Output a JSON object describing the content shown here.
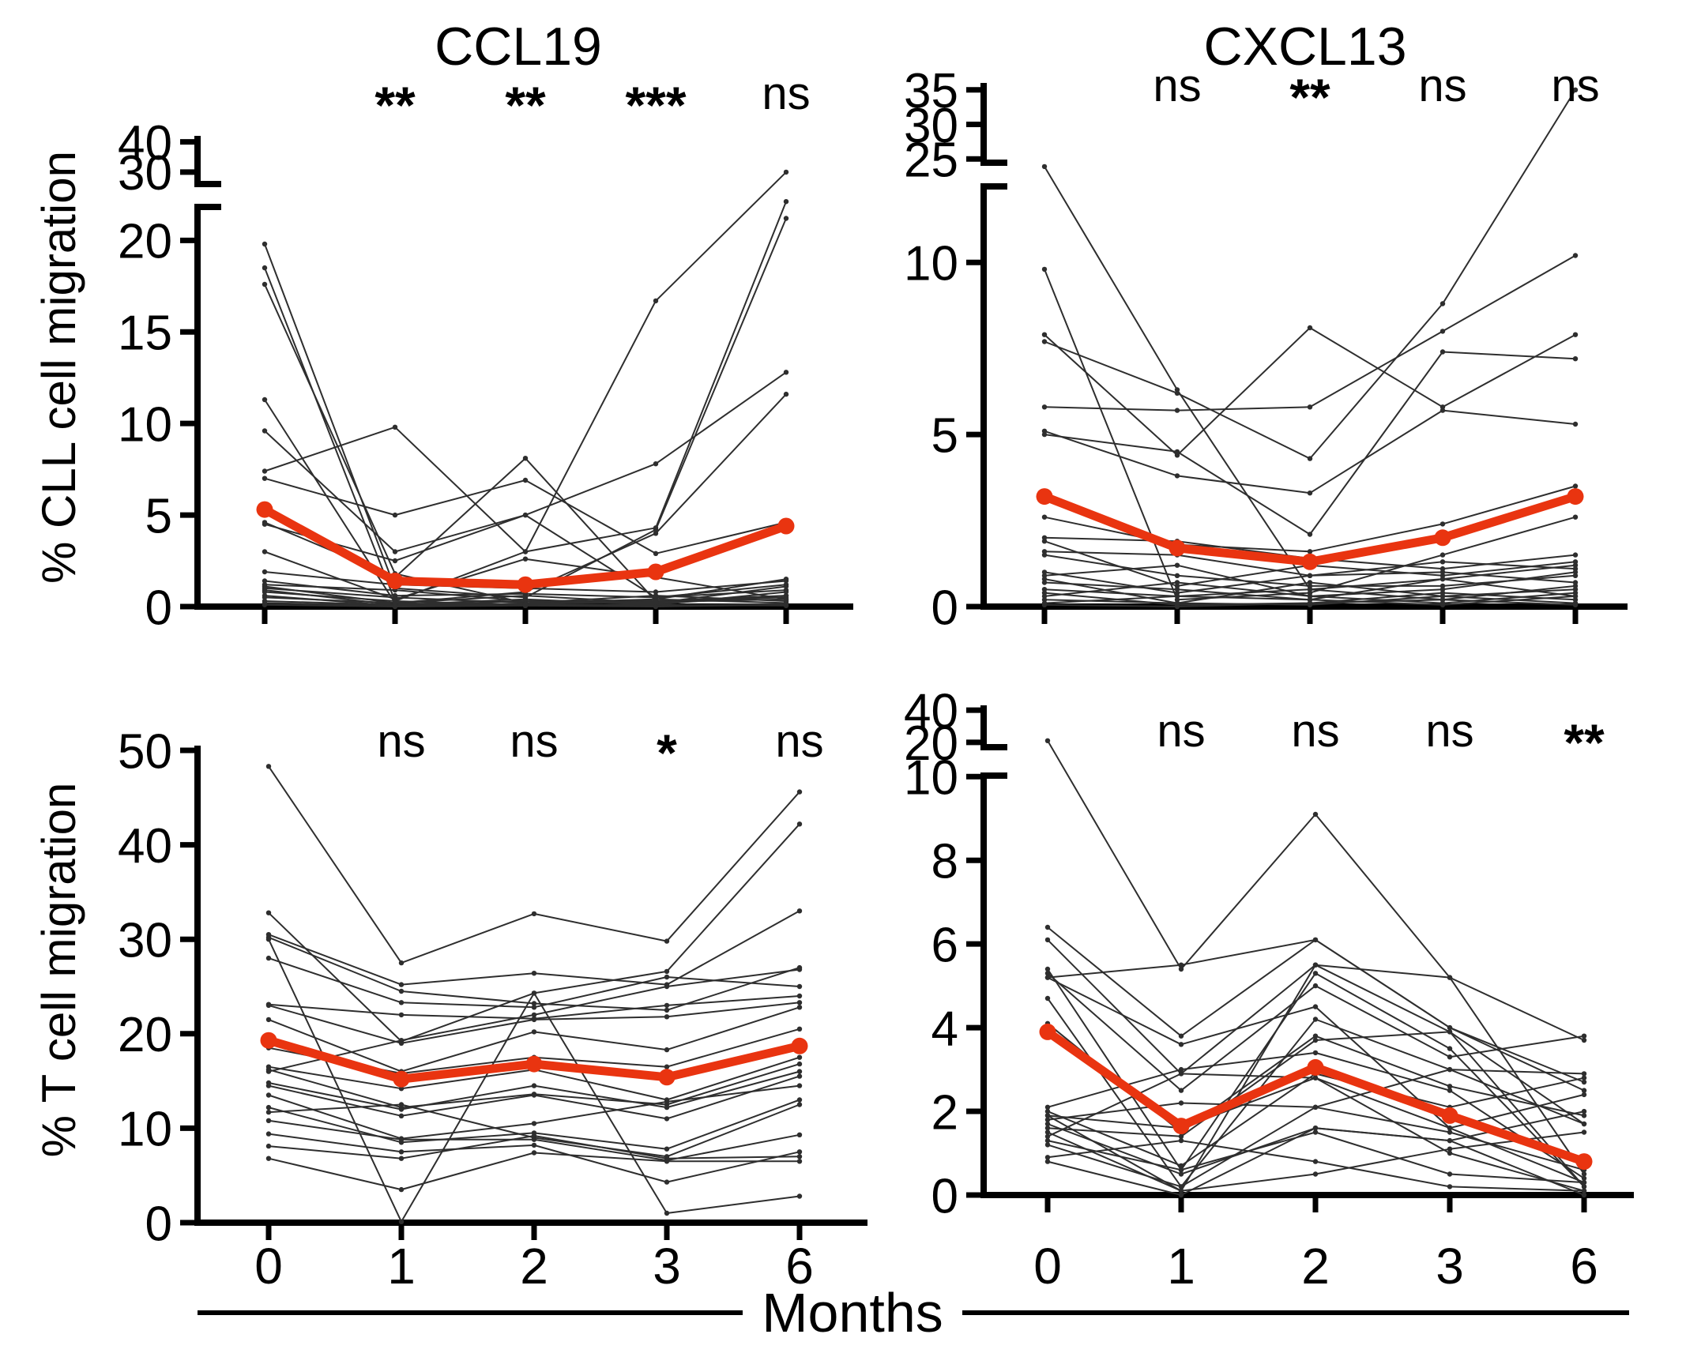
{
  "figure": {
    "xlabel": "Months",
    "col_titles": [
      "CCL19",
      "CXCL13"
    ],
    "row_labels": [
      "% CLL cell migration",
      "% T cell migration"
    ],
    "colors": {
      "mean_line": "#e93410",
      "individual_line": "#2e2e2e",
      "axis": "#000000",
      "background": "#ffffff"
    }
  },
  "chart_data": [
    {
      "type": "line",
      "id": "cll_ccl19",
      "title": "CCL19",
      "ylabel": "% CLL cell migration",
      "x_categories": [
        0,
        1,
        2,
        3,
        6
      ],
      "sig": [
        "**",
        "**",
        "***",
        "ns"
      ],
      "y_main": {
        "max_value": 22,
        "ticks": [
          0,
          5,
          10,
          15,
          20
        ]
      },
      "y_break": {
        "range": [
          25,
          42
        ],
        "ticks": [
          30,
          40
        ]
      },
      "mean": [
        5.3,
        1.4,
        1.2,
        1.9,
        4.4
      ],
      "individuals": [
        [
          19.8,
          1.0,
          0.5,
          4.2,
          21.2
        ],
        [
          18.5,
          0.3,
          3.0,
          16.7,
          30.0
        ],
        [
          17.6,
          1.8,
          0.2,
          0.4,
          1.5
        ],
        [
          11.3,
          0.2,
          0.8,
          4.0,
          11.6
        ],
        [
          9.6,
          3.0,
          5.0,
          0.5,
          1.2
        ],
        [
          7.4,
          9.8,
          3.0,
          4.3,
          22.4
        ],
        [
          7.0,
          5.0,
          6.9,
          2.9,
          4.6
        ],
        [
          4.6,
          1.6,
          8.1,
          0.3,
          0.6
        ],
        [
          4.5,
          2.5,
          5.0,
          7.8,
          12.8
        ],
        [
          3.0,
          0.4,
          2.6,
          1.6,
          0.4
        ],
        [
          1.9,
          1.2,
          1.0,
          0.8,
          1.4
        ],
        [
          1.4,
          0.6,
          0.7,
          0.5,
          0.9
        ],
        [
          1.2,
          0.9,
          0.3,
          0.3,
          0.5
        ],
        [
          1.1,
          0.2,
          0.6,
          0.2,
          1.1
        ],
        [
          1.0,
          0.5,
          0.2,
          0.6,
          0.3
        ],
        [
          0.9,
          0.1,
          0.4,
          0.1,
          0.8
        ],
        [
          0.8,
          0.3,
          0.1,
          0.4,
          0.2
        ],
        [
          0.6,
          0.05,
          0.3,
          0.15,
          0.6
        ],
        [
          0.5,
          0.2,
          0.05,
          0.05,
          0.15
        ],
        [
          0.3,
          0.1,
          0.15,
          0.25,
          0.4
        ],
        [
          0.2,
          0.05,
          0.1,
          0.1,
          0.05
        ],
        [
          0.1,
          0.0,
          0.05,
          0.0,
          0.1
        ]
      ]
    },
    {
      "type": "line",
      "id": "cll_cxcl13",
      "title": "CXCL13",
      "ylabel": "% CLL cell migration",
      "x_categories": [
        0,
        1,
        2,
        3,
        6
      ],
      "sig": [
        "ns",
        "**",
        "ns",
        "ns"
      ],
      "y_main": {
        "max_value": 12.3,
        "ticks": [
          0,
          5,
          10
        ]
      },
      "y_break": {
        "range": [
          24,
          36
        ],
        "ticks": [
          25,
          30,
          35
        ]
      },
      "mean": [
        3.2,
        1.7,
        1.3,
        2.0,
        3.2
      ],
      "individuals": [
        [
          23.5,
          6.3,
          0.5,
          0.8,
          1.2
        ],
        [
          9.8,
          0.2,
          0.4,
          1.5,
          2.6
        ],
        [
          7.9,
          4.4,
          8.1,
          5.8,
          7.9
        ],
        [
          7.7,
          6.2,
          4.3,
          8.8,
          35.0
        ],
        [
          5.8,
          5.7,
          5.8,
          8.0,
          10.2
        ],
        [
          5.1,
          3.8,
          3.3,
          5.7,
          5.3
        ],
        [
          5.0,
          4.5,
          2.1,
          7.4,
          7.2
        ],
        [
          2.6,
          1.8,
          1.6,
          2.4,
          3.5
        ],
        [
          2.0,
          1.9,
          1.4,
          1.1,
          1.5
        ],
        [
          1.9,
          0.6,
          1.2,
          0.9,
          1.3
        ],
        [
          1.6,
          1.5,
          0.9,
          1.3,
          1.1
        ],
        [
          1.5,
          0.9,
          0.6,
          0.6,
          0.9
        ],
        [
          1.0,
          0.4,
          0.9,
          1.0,
          0.7
        ],
        [
          0.9,
          1.2,
          0.3,
          0.5,
          1.0
        ],
        [
          0.8,
          0.1,
          0.7,
          0.3,
          0.5
        ],
        [
          0.7,
          0.5,
          0.2,
          0.8,
          0.3
        ],
        [
          0.5,
          0.3,
          0.5,
          0.2,
          0.6
        ],
        [
          0.4,
          0.05,
          0.1,
          0.4,
          0.2
        ],
        [
          0.3,
          0.7,
          0.3,
          0.1,
          0.4
        ],
        [
          0.2,
          0.1,
          0.05,
          0.3,
          0.1
        ],
        [
          0.1,
          0.3,
          0.2,
          0.05,
          0.3
        ],
        [
          0.05,
          0.0,
          0.1,
          0.2,
          0.05
        ]
      ]
    },
    {
      "type": "line",
      "id": "t_ccl19",
      "title": "",
      "ylabel": "% T cell migration",
      "x_categories": [
        0,
        1,
        2,
        3,
        6
      ],
      "sig": [
        "ns",
        "ns",
        "*",
        "ns"
      ],
      "y_main": {
        "max_value": 50.5,
        "ticks": [
          0,
          10,
          20,
          30,
          40,
          50
        ]
      },
      "y_break": null,
      "mean": [
        19.3,
        15.2,
        16.8,
        15.4,
        18.7
      ],
      "individuals": [
        [
          48.3,
          27.5,
          32.7,
          29.8,
          45.6
        ],
        [
          32.8,
          19.2,
          24.3,
          26.6,
          42.2
        ],
        [
          30.5,
          25.2,
          26.4,
          25.2,
          33.0
        ],
        [
          30.2,
          24.5,
          23.2,
          22.5,
          27.0
        ],
        [
          28.0,
          23.3,
          22.8,
          26.0,
          25.0
        ],
        [
          23.1,
          22.0,
          21.6,
          23.0,
          24.0
        ],
        [
          23.0,
          19.0,
          21.5,
          21.8,
          23.3
        ],
        [
          21.5,
          16.0,
          20.2,
          18.3,
          22.8
        ],
        [
          18.5,
          15.8,
          17.5,
          16.5,
          20.5
        ],
        [
          16.5,
          14.2,
          16.2,
          13.0,
          17.5
        ],
        [
          16.2,
          12.2,
          13.6,
          12.5,
          16.8
        ],
        [
          14.8,
          12.0,
          14.5,
          12.2,
          16.0
        ],
        [
          14.5,
          11.3,
          13.5,
          11.0,
          15.5
        ],
        [
          13.5,
          8.9,
          10.5,
          12.8,
          14.5
        ],
        [
          12.2,
          8.5,
          9.5,
          7.8,
          13.0
        ],
        [
          11.7,
          12.5,
          9.0,
          7.0,
          12.5
        ],
        [
          10.8,
          8.8,
          8.8,
          6.6,
          9.3
        ],
        [
          9.4,
          7.5,
          8.2,
          4.3,
          7.5
        ],
        [
          8.1,
          6.8,
          9.2,
          6.8,
          7.0
        ],
        [
          6.8,
          3.5,
          7.4,
          6.5,
          6.5
        ],
        [
          30.0,
          0.1,
          24.3,
          1.0,
          2.8
        ],
        [
          16.0,
          19.3,
          22.0,
          25.0,
          26.8
        ]
      ]
    },
    {
      "type": "line",
      "id": "t_cxcl13",
      "title": "",
      "ylabel": "% T cell migration",
      "x_categories": [
        0,
        1,
        2,
        3,
        6
      ],
      "sig": [
        "ns",
        "ns",
        "ns",
        "**"
      ],
      "y_main": {
        "max_value": 10.1,
        "ticks": [
          0,
          2,
          4,
          6,
          8,
          10
        ]
      },
      "y_break": {
        "range": [
          15,
          43
        ],
        "ticks": [
          20,
          40
        ]
      },
      "mean": [
        3.9,
        1.65,
        3.05,
        1.9,
        0.8
      ],
      "individuals": [
        [
          21.0,
          5.4,
          9.1,
          5.2,
          0.5
        ],
        [
          6.4,
          3.8,
          6.1,
          4.0,
          2.5
        ],
        [
          6.1,
          2.9,
          5.5,
          3.9,
          1.7
        ],
        [
          5.4,
          0.6,
          5.3,
          3.5,
          0.2
        ],
        [
          5.3,
          2.5,
          5.0,
          3.3,
          3.8
        ],
        [
          5.2,
          5.5,
          6.1,
          4.0,
          2.7
        ],
        [
          5.2,
          3.6,
          4.5,
          1.6,
          0.3
        ],
        [
          4.7,
          0.2,
          4.2,
          3.0,
          2.9
        ],
        [
          4.1,
          1.5,
          3.8,
          2.6,
          1.9
        ],
        [
          2.1,
          3.0,
          3.4,
          2.5,
          0.4
        ],
        [
          2.0,
          0.7,
          2.9,
          2.1,
          2.8
        ],
        [
          1.9,
          1.6,
          2.8,
          1.6,
          2.4
        ],
        [
          1.8,
          2.2,
          2.1,
          1.5,
          0.6
        ],
        [
          1.7,
          0.5,
          1.6,
          1.3,
          2.0
        ],
        [
          1.6,
          1.4,
          3.7,
          3.9,
          0.2
        ],
        [
          1.5,
          0.1,
          0.5,
          1.1,
          1.5
        ],
        [
          1.4,
          2.9,
          2.8,
          1.0,
          0.1
        ],
        [
          1.3,
          0.6,
          1.5,
          0.5,
          0.3
        ],
        [
          1.2,
          0.2,
          2.1,
          3.0,
          1.7
        ],
        [
          0.9,
          1.3,
          0.8,
          0.2,
          0.1
        ],
        [
          0.8,
          0.0,
          1.6,
          1.3,
          0.0
        ],
        [
          1.9,
          0.1,
          5.5,
          5.2,
          3.7
        ]
      ]
    }
  ]
}
